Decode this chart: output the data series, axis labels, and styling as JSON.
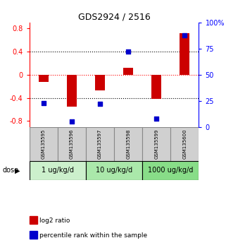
{
  "title": "GDS2924 / 2516",
  "samples": [
    "GSM135595",
    "GSM135596",
    "GSM135597",
    "GSM135598",
    "GSM135599",
    "GSM135600"
  ],
  "log2_ratios": [
    -0.13,
    -0.55,
    -0.27,
    0.12,
    -0.42,
    0.72
  ],
  "percentile_ranks": [
    23,
    5,
    22,
    72,
    8,
    88
  ],
  "dose_groups": [
    {
      "label": "1 ug/kg/d",
      "start": 0,
      "end": 2,
      "color": "#ccf0cc"
    },
    {
      "label": "10 ug/kg/d",
      "start": 2,
      "end": 4,
      "color": "#aae8aa"
    },
    {
      "label": "1000 ug/kg/d",
      "start": 4,
      "end": 6,
      "color": "#88dd88"
    }
  ],
  "dose_label": "dose",
  "bar_color": "#cc0000",
  "dot_color": "#0000cc",
  "ylim_left": [
    -0.9,
    0.9
  ],
  "ylim_right": [
    0,
    100
  ],
  "yticks_left": [
    -0.8,
    -0.4,
    0.0,
    0.4,
    0.8
  ],
  "ytick_labels_left": [
    "-0.8",
    "-0.4",
    "0",
    "0.4",
    "0.8"
  ],
  "yticks_right": [
    0,
    25,
    50,
    75,
    100
  ],
  "ytick_labels_right": [
    "0",
    "25",
    "50",
    "75",
    "100%"
  ],
  "legend_bar_label": "log2 ratio",
  "legend_dot_label": "percentile rank within the sample",
  "bar_width": 0.35,
  "dot_size": 22,
  "title_fontsize": 9,
  "tick_fontsize": 7,
  "sample_fontsize": 5,
  "dose_fontsize": 7,
  "legend_fontsize": 6.5
}
